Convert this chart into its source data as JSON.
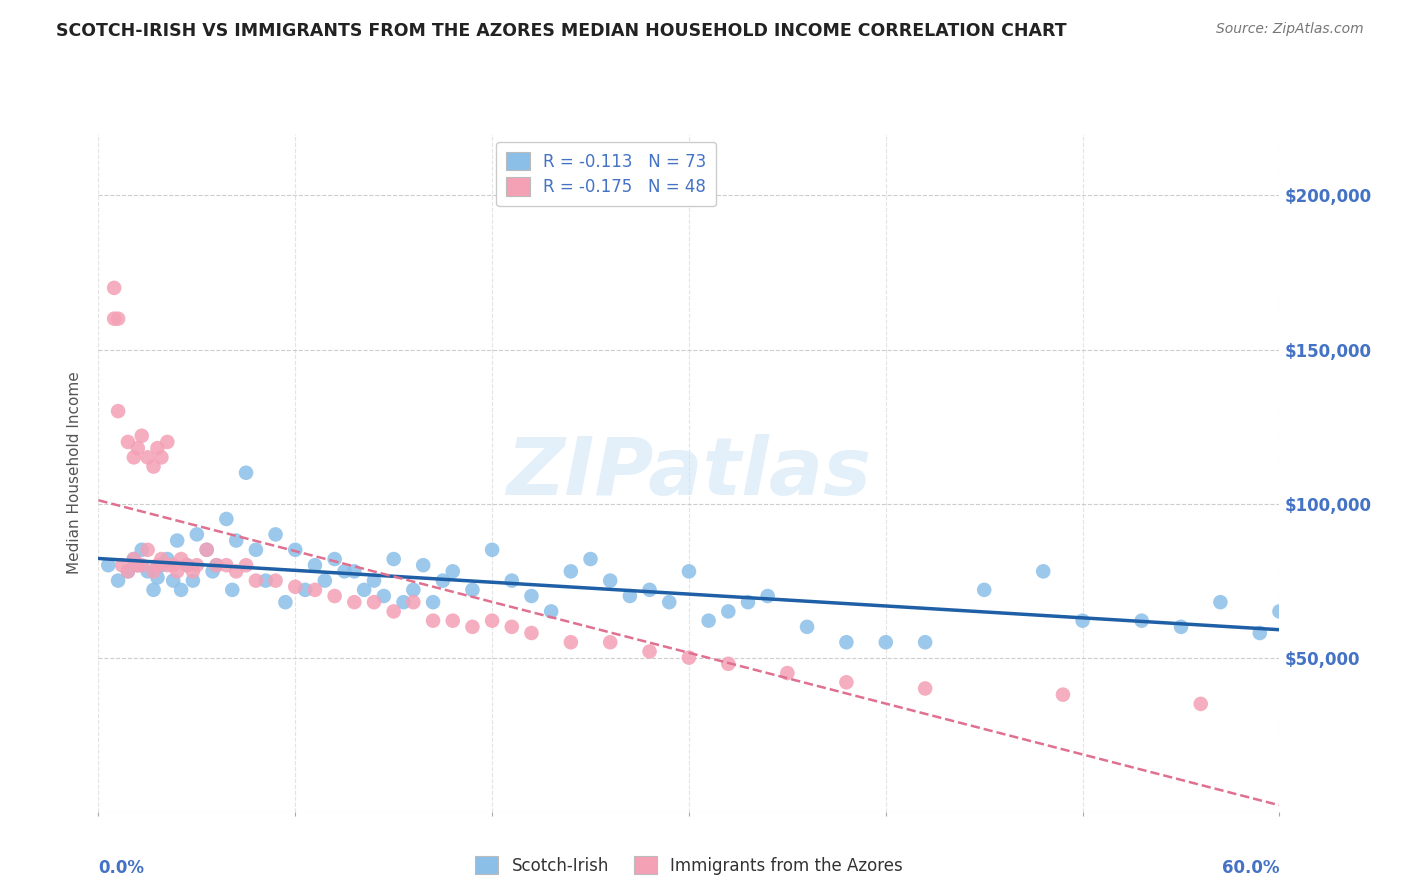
{
  "title": "SCOTCH-IRISH VS IMMIGRANTS FROM THE AZORES MEDIAN HOUSEHOLD INCOME CORRELATION CHART",
  "source": "Source: ZipAtlas.com",
  "ylabel": "Median Household Income",
  "legend1_r": "R = -0.113",
  "legend1_n": "N = 73",
  "legend2_r": "R = -0.175",
  "legend2_n": "N = 48",
  "legend_entry1": "Scotch-Irish",
  "legend_entry2": "Immigrants from the Azores",
  "scotch_irish_color": "#8bbfe8",
  "azores_color": "#f4a0b5",
  "line1_color": "#1f5fa6",
  "line2_color": "#e07090",
  "watermark": "ZIPatlas",
  "background_color": "#ffffff",
  "grid_color": "#c8c8c8",
  "title_color": "#222222",
  "axis_label_color": "#4472c4",
  "ytick_labels": [
    "",
    "$50,000",
    "$100,000",
    "$150,000",
    "$200,000"
  ],
  "ytick_values": [
    0,
    50000,
    100000,
    150000,
    200000
  ],
  "xlim": [
    0.0,
    0.6
  ],
  "ylim": [
    0,
    220000
  ],
  "scotch_irish_x": [
    0.005,
    0.01,
    0.015,
    0.018,
    0.02,
    0.022,
    0.025,
    0.028,
    0.03,
    0.032,
    0.035,
    0.038,
    0.04,
    0.042,
    0.045,
    0.048,
    0.05,
    0.055,
    0.058,
    0.06,
    0.065,
    0.068,
    0.07,
    0.075,
    0.08,
    0.085,
    0.09,
    0.095,
    0.1,
    0.105,
    0.11,
    0.115,
    0.12,
    0.125,
    0.13,
    0.135,
    0.14,
    0.145,
    0.15,
    0.155,
    0.16,
    0.165,
    0.17,
    0.175,
    0.18,
    0.19,
    0.2,
    0.21,
    0.22,
    0.23,
    0.24,
    0.25,
    0.26,
    0.27,
    0.28,
    0.29,
    0.3,
    0.31,
    0.32,
    0.33,
    0.34,
    0.36,
    0.38,
    0.4,
    0.42,
    0.45,
    0.48,
    0.5,
    0.53,
    0.55,
    0.57,
    0.59,
    0.6
  ],
  "scotch_irish_y": [
    80000,
    75000,
    78000,
    82000,
    80000,
    85000,
    78000,
    72000,
    76000,
    80000,
    82000,
    75000,
    88000,
    72000,
    80000,
    75000,
    90000,
    85000,
    78000,
    80000,
    95000,
    72000,
    88000,
    110000,
    85000,
    75000,
    90000,
    68000,
    85000,
    72000,
    80000,
    75000,
    82000,
    78000,
    78000,
    72000,
    75000,
    70000,
    82000,
    68000,
    72000,
    80000,
    68000,
    75000,
    78000,
    72000,
    85000,
    75000,
    70000,
    65000,
    78000,
    82000,
    75000,
    70000,
    72000,
    68000,
    78000,
    62000,
    65000,
    68000,
    70000,
    60000,
    55000,
    55000,
    55000,
    72000,
    78000,
    62000,
    62000,
    60000,
    68000,
    58000,
    65000
  ],
  "azores_x": [
    0.008,
    0.01,
    0.012,
    0.015,
    0.018,
    0.02,
    0.022,
    0.025,
    0.028,
    0.03,
    0.032,
    0.035,
    0.038,
    0.04,
    0.042,
    0.045,
    0.048,
    0.05,
    0.055,
    0.06,
    0.065,
    0.07,
    0.075,
    0.08,
    0.09,
    0.1,
    0.11,
    0.12,
    0.13,
    0.14,
    0.15,
    0.16,
    0.17,
    0.18,
    0.19,
    0.2,
    0.21,
    0.22,
    0.24,
    0.26,
    0.28,
    0.3,
    0.32,
    0.35,
    0.38,
    0.42,
    0.49,
    0.56
  ],
  "azores_y": [
    160000,
    130000,
    80000,
    78000,
    82000,
    80000,
    80000,
    85000,
    78000,
    80000,
    82000,
    80000,
    80000,
    78000,
    82000,
    80000,
    78000,
    80000,
    85000,
    80000,
    80000,
    78000,
    80000,
    75000,
    75000,
    73000,
    72000,
    70000,
    68000,
    68000,
    65000,
    68000,
    62000,
    62000,
    60000,
    62000,
    60000,
    58000,
    55000,
    55000,
    52000,
    50000,
    48000,
    45000,
    42000,
    40000,
    38000,
    35000
  ],
  "extra_pink_high_x": [
    0.008,
    0.01,
    0.015,
    0.018,
    0.02,
    0.022,
    0.025,
    0.028,
    0.03,
    0.032,
    0.035
  ],
  "extra_pink_high_y": [
    170000,
    160000,
    120000,
    115000,
    118000,
    122000,
    115000,
    112000,
    118000,
    115000,
    120000
  ]
}
